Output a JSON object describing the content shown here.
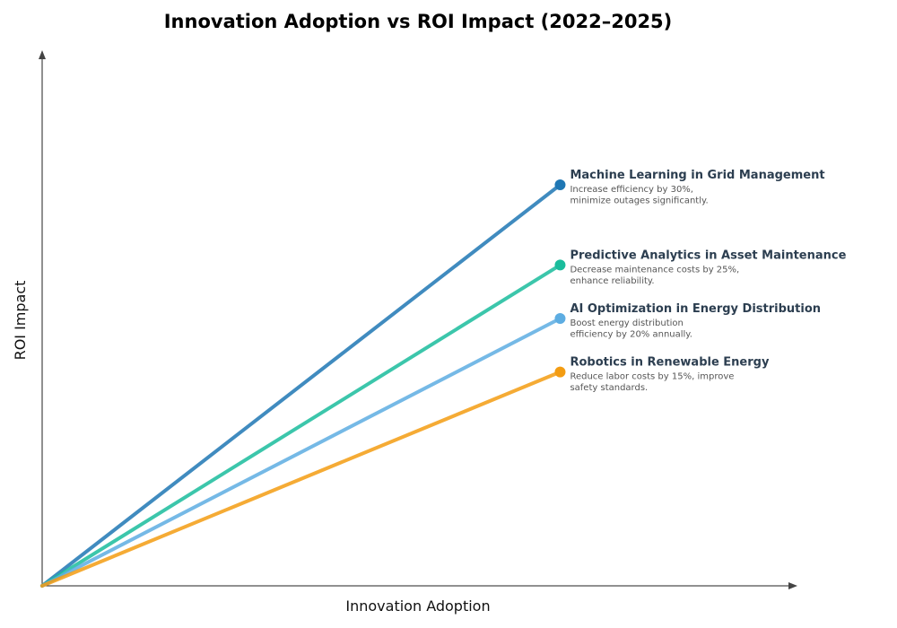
{
  "chart_data": {
    "type": "line",
    "title": "Innovation Adoption vs ROI Impact (2022–2025)",
    "xlabel": "Innovation Adoption",
    "ylabel": "ROI Impact",
    "grid": false,
    "legend": "inline-right-of-line-ends",
    "xlim": [
      0,
      1
    ],
    "ylim": [
      0,
      1
    ],
    "series": [
      {
        "name": "Machine Learning in Grid Management",
        "description_lines": [
          "Increase efficiency by 30%,",
          "minimize outages significantly."
        ],
        "color": "#1f77b4",
        "x": [
          0,
          0.685
        ],
        "y": [
          0,
          0.75
        ]
      },
      {
        "name": "Predictive Analytics in Asset Maintenance",
        "description_lines": [
          "Decrease maintenance costs by 25%,",
          "enhance reliability."
        ],
        "color": "#1abc9c",
        "x": [
          0,
          0.685
        ],
        "y": [
          0,
          0.6
        ]
      },
      {
        "name": "AI Optimization in Energy Distribution",
        "description_lines": [
          "Boost energy distribution",
          "efficiency by 20% annually."
        ],
        "color": "#5dade2",
        "x": [
          0,
          0.685
        ],
        "y": [
          0,
          0.5
        ]
      },
      {
        "name": "Robotics in Renewable Energy",
        "description_lines": [
          "Reduce labor costs by 15%, improve",
          "safety standards."
        ],
        "color": "#f39c12",
        "x": [
          0,
          0.685
        ],
        "y": [
          0,
          0.4
        ]
      }
    ]
  }
}
